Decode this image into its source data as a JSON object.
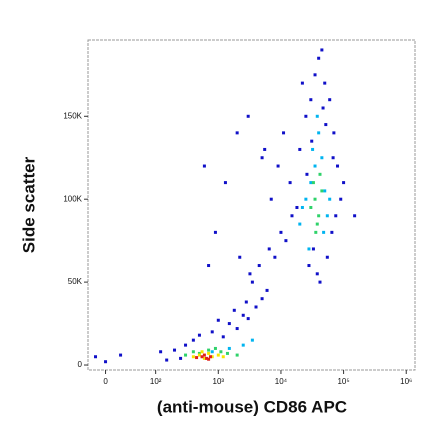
{
  "chart_data": {
    "type": "scatter",
    "xlabel": "(anti-mouse) CD86 APC",
    "ylabel": "Side scatter",
    "xscale": "biexponential",
    "xlim": [
      -35,
      1380000
    ],
    "ylim": [
      -3000,
      196000
    ],
    "xticks": [
      0,
      {
        "value": 100,
        "label": "10²"
      },
      {
        "value": 1000,
        "label": "10³"
      },
      {
        "value": 10000,
        "label": "10⁴"
      },
      {
        "value": 100000,
        "label": "10⁵"
      },
      {
        "value": 1000000,
        "label": "10⁶"
      }
    ],
    "yticks": [
      0,
      {
        "value": 50000,
        "label": "50K"
      },
      {
        "value": 100000,
        "label": "100K"
      },
      {
        "value": 150000,
        "label": "150K"
      }
    ],
    "series": [
      {
        "color": "#1010c8",
        "x": [
          150,
          200,
          250,
          300,
          400,
          500,
          800,
          1200,
          1500,
          2000,
          2500,
          3000,
          4000,
          5000,
          6000,
          3500,
          2800,
          1800,
          1000,
          700,
          900,
          1300,
          2200,
          3200,
          4500,
          6500,
          8000,
          10000,
          12000,
          15000,
          7000,
          5500,
          9000,
          11000,
          14000,
          18000,
          20000,
          25000,
          30000,
          22000,
          35000,
          40000,
          45000,
          50000,
          60000,
          70000,
          80000,
          90000,
          28000,
          33000,
          38000,
          42000,
          55000,
          65000,
          75000,
          26000,
          31000,
          47000,
          52000,
          68000,
          120,
          -20,
          0,
          30,
          100000,
          150000,
          3000,
          600,
          2000,
          5000
        ],
        "values": [
          3000,
          9000,
          4000,
          12000,
          15000,
          18000,
          20000,
          17000,
          25000,
          22000,
          30000,
          28000,
          35000,
          40000,
          45000,
          50000,
          38000,
          33000,
          27000,
          60000,
          80000,
          110000,
          65000,
          55000,
          60000,
          70000,
          65000,
          80000,
          75000,
          90000,
          100000,
          130000,
          120000,
          140000,
          110000,
          95000,
          130000,
          150000,
          160000,
          170000,
          175000,
          185000,
          190000,
          170000,
          160000,
          140000,
          120000,
          100000,
          60000,
          70000,
          55000,
          50000,
          65000,
          80000,
          90000,
          115000,
          135000,
          155000,
          145000,
          125000,
          8000,
          5000,
          2000,
          6000,
          110000,
          90000,
          150000,
          120000,
          140000,
          125000
        ]
      },
      {
        "color": "#00b4f0",
        "x": [
          800,
          1500,
          2500,
          3500,
          20000,
          25000,
          30000,
          35000,
          45000,
          50000,
          55000,
          28000,
          40000,
          60000,
          22000,
          32000,
          48000,
          38000
        ],
        "values": [
          8000,
          10000,
          12000,
          15000,
          85000,
          100000,
          110000,
          120000,
          125000,
          105000,
          90000,
          70000,
          140000,
          100000,
          95000,
          130000,
          80000,
          150000
        ]
      },
      {
        "color": "#2fd26a",
        "x": [
          300,
          400,
          500,
          700,
          900,
          1100,
          1400,
          2000,
          30000,
          35000,
          40000,
          45000,
          38000,
          33000,
          42000,
          36000
        ],
        "values": [
          6000,
          8000,
          7000,
          9000,
          10000,
          8000,
          7000,
          6000,
          95000,
          100000,
          90000,
          105000,
          85000,
          110000,
          115000,
          80000
        ]
      },
      {
        "color": "#f5e600",
        "x": [
          400,
          500,
          600,
          700,
          800,
          1000,
          1200,
          550
        ],
        "values": [
          5000,
          6000,
          4000,
          7000,
          5000,
          6000,
          5000,
          8000
        ]
      },
      {
        "color": "#e0201b",
        "x": [
          450,
          550,
          650,
          750,
          600,
          700
        ],
        "values": [
          4500,
          5000,
          4000,
          5000,
          6000,
          3500
        ]
      }
    ]
  }
}
